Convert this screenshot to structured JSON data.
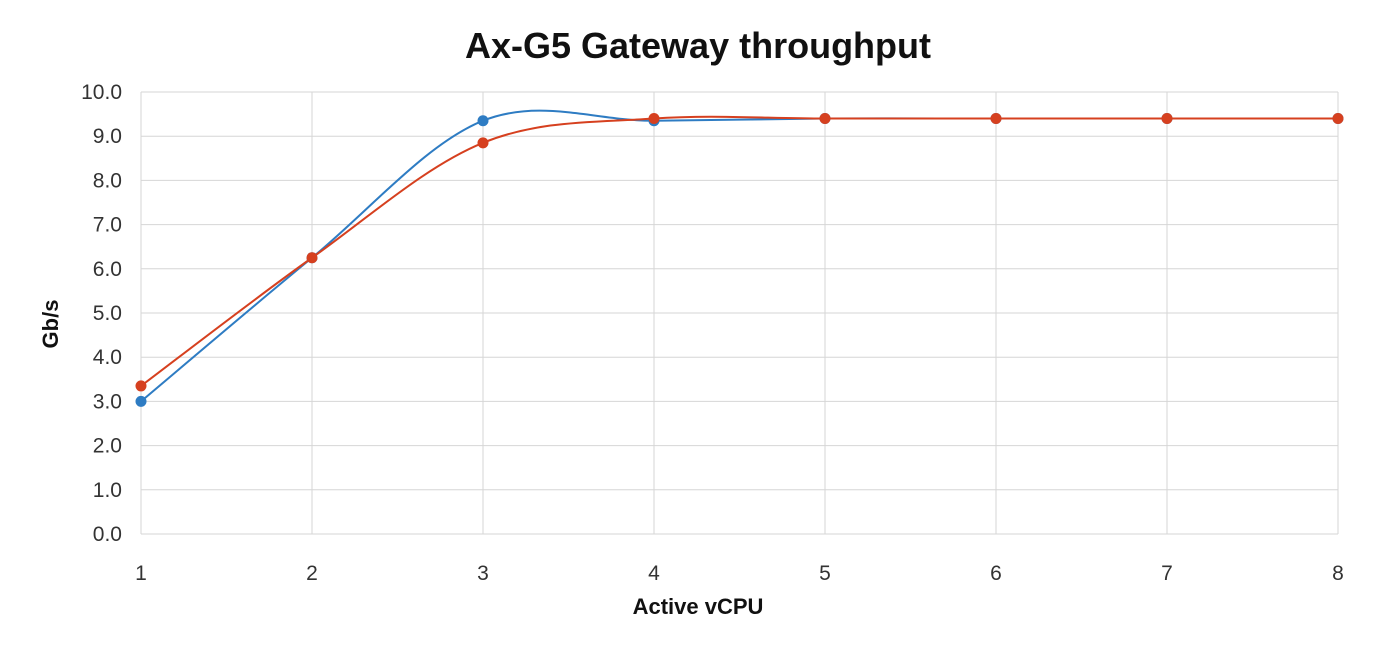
{
  "chart_data": {
    "type": "line",
    "title": "Ax-G5 Gateway throughput",
    "xlabel": "Active vCPU",
    "ylabel": "Gb/s",
    "x": [
      1,
      2,
      3,
      4,
      5,
      6,
      7,
      8
    ],
    "x_tick_labels": [
      "1",
      "2",
      "3",
      "4",
      "5",
      "6",
      "7",
      "8"
    ],
    "y_tick_labels": [
      "0.0",
      "1.0",
      "2.0",
      "3.0",
      "4.0",
      "5.0",
      "6.0",
      "7.0",
      "8.0",
      "9.0",
      "10.0"
    ],
    "xlim": [
      1,
      8
    ],
    "ylim": [
      0,
      10
    ],
    "grid": true,
    "series": [
      {
        "values": [
          3.0,
          6.25,
          9.35,
          9.35,
          9.4,
          9.4,
          9.4,
          9.4
        ],
        "color": "#2e7cc3"
      },
      {
        "values": [
          3.35,
          6.25,
          8.85,
          9.4,
          9.4,
          9.4,
          9.4,
          9.4
        ],
        "color": "#d6401f"
      }
    ]
  }
}
